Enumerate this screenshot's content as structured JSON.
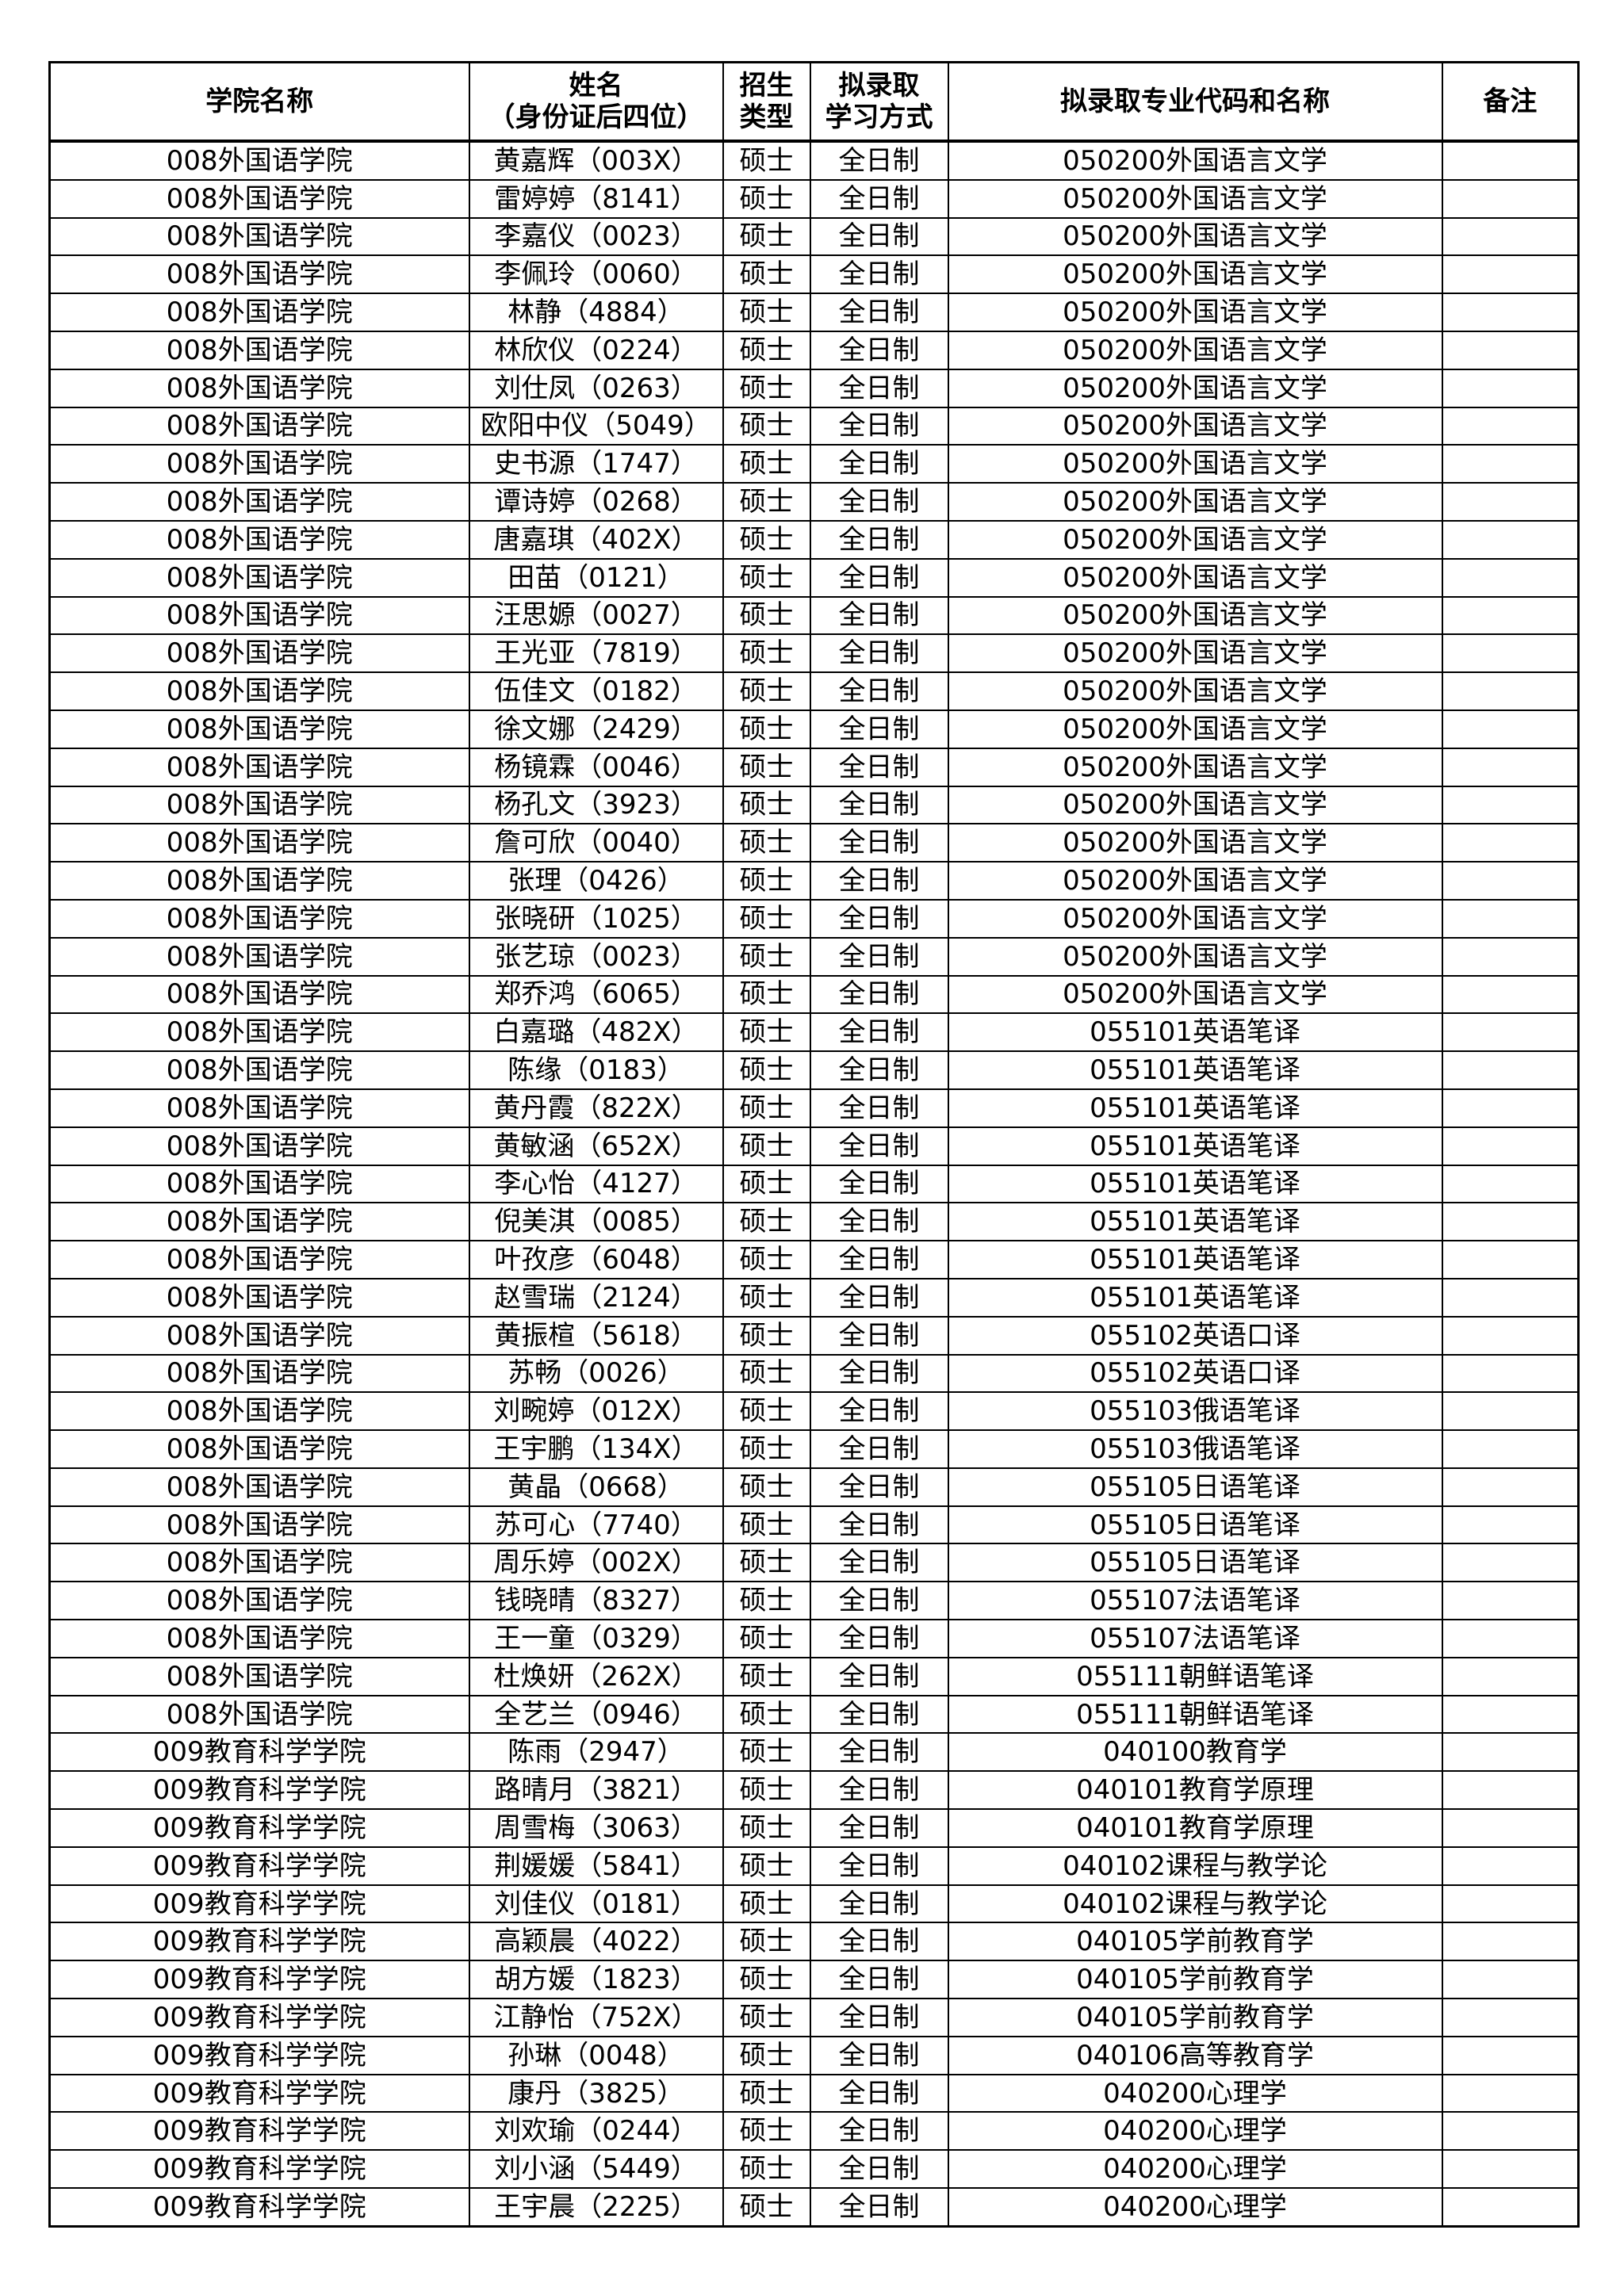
{
  "headers": [
    "学院名称",
    "姓名\n（身份证后四位）",
    "招生\n类型",
    "拟录取\n学习方式",
    "拟录取专业代码和名称",
    "备注"
  ],
  "rows": [
    [
      "008外国语学院",
      "黄嘉辉（003X）",
      "硕士",
      "全日制",
      "050200外国语言文学",
      ""
    ],
    [
      "008外国语学院",
      "雷婷婷（8141）",
      "硕士",
      "全日制",
      "050200外国语言文学",
      ""
    ],
    [
      "008外国语学院",
      "李嘉仪（0023）",
      "硕士",
      "全日制",
      "050200外国语言文学",
      ""
    ],
    [
      "008外国语学院",
      "李佩玲（0060）",
      "硕士",
      "全日制",
      "050200外国语言文学",
      ""
    ],
    [
      "008外国语学院",
      "林静（4884）",
      "硕士",
      "全日制",
      "050200外国语言文学",
      ""
    ],
    [
      "008外国语学院",
      "林欣仪（0224）",
      "硕士",
      "全日制",
      "050200外国语言文学",
      ""
    ],
    [
      "008外国语学院",
      "刘仕凤（0263）",
      "硕士",
      "全日制",
      "050200外国语言文学",
      ""
    ],
    [
      "008外国语学院",
      "欧阳中仪（5049）",
      "硕士",
      "全日制",
      "050200外国语言文学",
      ""
    ],
    [
      "008外国语学院",
      "史书源（1747）",
      "硕士",
      "全日制",
      "050200外国语言文学",
      ""
    ],
    [
      "008外国语学院",
      "谭诗婷（0268）",
      "硕士",
      "全日制",
      "050200外国语言文学",
      ""
    ],
    [
      "008外国语学院",
      "唐嘉琪（402X）",
      "硕士",
      "全日制",
      "050200外国语言文学",
      ""
    ],
    [
      "008外国语学院",
      "田苗（0121）",
      "硕士",
      "全日制",
      "050200外国语言文学",
      ""
    ],
    [
      "008外国语学院",
      "汪思嫄（0027）",
      "硕士",
      "全日制",
      "050200外国语言文学",
      ""
    ],
    [
      "008外国语学院",
      "王光亚（7819）",
      "硕士",
      "全日制",
      "050200外国语言文学",
      ""
    ],
    [
      "008外国语学院",
      "伍佳文（0182）",
      "硕士",
      "全日制",
      "050200外国语言文学",
      ""
    ],
    [
      "008外国语学院",
      "徐文娜（2429）",
      "硕士",
      "全日制",
      "050200外国语言文学",
      ""
    ],
    [
      "008外国语学院",
      "杨镜霖（0046）",
      "硕士",
      "全日制",
      "050200外国语言文学",
      ""
    ],
    [
      "008外国语学院",
      "杨孔文（3923）",
      "硕士",
      "全日制",
      "050200外国语言文学",
      ""
    ],
    [
      "008外国语学院",
      "詹可欣（0040）",
      "硕士",
      "全日制",
      "050200外国语言文学",
      ""
    ],
    [
      "008外国语学院",
      "张理（0426）",
      "硕士",
      "全日制",
      "050200外国语言文学",
      ""
    ],
    [
      "008外国语学院",
      "张晓研（1025）",
      "硕士",
      "全日制",
      "050200外国语言文学",
      ""
    ],
    [
      "008外国语学院",
      "张艺琼（0023）",
      "硕士",
      "全日制",
      "050200外国语言文学",
      ""
    ],
    [
      "008外国语学院",
      "郑乔鸿（6065）",
      "硕士",
      "全日制",
      "050200外国语言文学",
      ""
    ],
    [
      "008外国语学院",
      "白嘉璐（482X）",
      "硕士",
      "全日制",
      "055101英语笔译",
      ""
    ],
    [
      "008外国语学院",
      "陈缘（0183）",
      "硕士",
      "全日制",
      "055101英语笔译",
      ""
    ],
    [
      "008外国语学院",
      "黄丹霞（822X）",
      "硕士",
      "全日制",
      "055101英语笔译",
      ""
    ],
    [
      "008外国语学院",
      "黄敏涵（652X）",
      "硕士",
      "全日制",
      "055101英语笔译",
      ""
    ],
    [
      "008外国语学院",
      "李心怡（4127）",
      "硕士",
      "全日制",
      "055101英语笔译",
      ""
    ],
    [
      "008外国语学院",
      "倪美淇（0085）",
      "硕士",
      "全日制",
      "055101英语笔译",
      ""
    ],
    [
      "008外国语学院",
      "叶孜彦（6048）",
      "硕士",
      "全日制",
      "055101英语笔译",
      ""
    ],
    [
      "008外国语学院",
      "赵雪瑞（2124）",
      "硕士",
      "全日制",
      "055101英语笔译",
      ""
    ],
    [
      "008外国语学院",
      "黄振楦（5618）",
      "硕士",
      "全日制",
      "055102英语口译",
      ""
    ],
    [
      "008外国语学院",
      "苏畅（0026）",
      "硕士",
      "全日制",
      "055102英语口译",
      ""
    ],
    [
      "008外国语学院",
      "刘畹婷（012X）",
      "硕士",
      "全日制",
      "055103俄语笔译",
      ""
    ],
    [
      "008外国语学院",
      "王宇鹏（134X）",
      "硕士",
      "全日制",
      "055103俄语笔译",
      ""
    ],
    [
      "008外国语学院",
      "黄晶（0668）",
      "硕士",
      "全日制",
      "055105日语笔译",
      ""
    ],
    [
      "008外国语学院",
      "苏可心（7740）",
      "硕士",
      "全日制",
      "055105日语笔译",
      ""
    ],
    [
      "008外国语学院",
      "周乐婷（002X）",
      "硕士",
      "全日制",
      "055105日语笔译",
      ""
    ],
    [
      "008外国语学院",
      "钱晓晴（8327）",
      "硕士",
      "全日制",
      "055107法语笔译",
      ""
    ],
    [
      "008外国语学院",
      "王一童（0329）",
      "硕士",
      "全日制",
      "055107法语笔译",
      ""
    ],
    [
      "008外国语学院",
      "杜焕妍（262X）",
      "硕士",
      "全日制",
      "055111朝鲜语笔译",
      ""
    ],
    [
      "008外国语学院",
      "全艺兰（0946）",
      "硕士",
      "全日制",
      "055111朝鲜语笔译",
      ""
    ],
    [
      "009教育科学学院",
      "陈雨（2947）",
      "硕士",
      "全日制",
      "040100教育学",
      ""
    ],
    [
      "009教育科学学院",
      "路晴月（3821）",
      "硕士",
      "全日制",
      "040101教育学原理",
      ""
    ],
    [
      "009教育科学学院",
      "周雪梅（3063）",
      "硕士",
      "全日制",
      "040101教育学原理",
      ""
    ],
    [
      "009教育科学学院",
      "荆媛媛（5841）",
      "硕士",
      "全日制",
      "040102课程与教学论",
      ""
    ],
    [
      "009教育科学学院",
      "刘佳仪（0181）",
      "硕士",
      "全日制",
      "040102课程与教学论",
      ""
    ],
    [
      "009教育科学学院",
      "高颖晨（4022）",
      "硕士",
      "全日制",
      "040105学前教育学",
      ""
    ],
    [
      "009教育科学学院",
      "胡方媛（1823）",
      "硕士",
      "全日制",
      "040105学前教育学",
      ""
    ],
    [
      "009教育科学学院",
      "江静怡（752X）",
      "硕士",
      "全日制",
      "040105学前教育学",
      ""
    ],
    [
      "009教育科学学院",
      "孙琳（0048）",
      "硕士",
      "全日制",
      "040106高等教育学",
      ""
    ],
    [
      "009教育科学学院",
      "康丹（3825）",
      "硕士",
      "全日制",
      "040200心理学",
      ""
    ],
    [
      "009教育科学学院",
      "刘欢瑜（0244）",
      "硕士",
      "全日制",
      "040200心理学",
      ""
    ],
    [
      "009教育科学学院",
      "刘小涵（5449）",
      "硕士",
      "全日制",
      "040200心理学",
      ""
    ],
    [
      "009教育科学学院",
      "王宇晨（2225）",
      "硕士",
      "全日制",
      "040200心理学",
      ""
    ]
  ]
}
